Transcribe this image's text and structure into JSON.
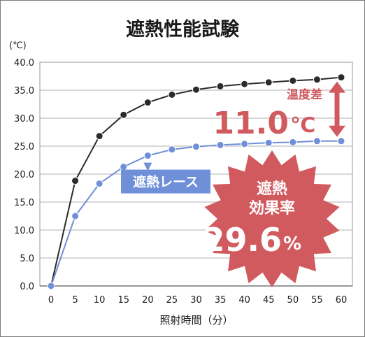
{
  "chart_data": {
    "type": "line",
    "title": "遮熱性能試験",
    "ylabel": "(℃)",
    "xlabel": "照射時間（分）",
    "x": [
      0,
      5,
      10,
      15,
      20,
      25,
      30,
      35,
      40,
      45,
      50,
      55,
      60
    ],
    "xticks": [
      "0",
      "5",
      "10",
      "15",
      "20",
      "25",
      "30",
      "35",
      "40",
      "45",
      "50",
      "55",
      "60"
    ],
    "yticks": [
      "0.0",
      "5.0",
      "10.0",
      "15.0",
      "20.0",
      "25.0",
      "30.0",
      "35.0",
      "40.0"
    ],
    "ylim": [
      0,
      40
    ],
    "xlim": [
      0,
      60
    ],
    "grid": true,
    "series": [
      {
        "key": "control",
        "color": "#2b2b2b",
        "values": [
          0,
          18.8,
          26.8,
          30.6,
          32.8,
          34.2,
          35.1,
          35.7,
          36.1,
          36.4,
          36.7,
          36.9,
          37.3
        ]
      },
      {
        "key": "shade",
        "name": "遮熱レース",
        "color": "#6f8fd8",
        "values": [
          0,
          12.5,
          18.3,
          21.3,
          23.3,
          24.4,
          24.9,
          25.2,
          25.4,
          25.6,
          25.7,
          25.9,
          25.9
        ]
      }
    ],
    "annotations": {
      "diff_label": "温度差",
      "diff_value": "11.0",
      "diff_unit": "℃",
      "rate_label_1": "遮熱",
      "rate_label_2": "効果率",
      "rate_value": "29.6",
      "rate_unit": "%"
    },
    "colors": {
      "accent": "#d15a5f",
      "series_label_bg": "#6f8fd8"
    }
  }
}
